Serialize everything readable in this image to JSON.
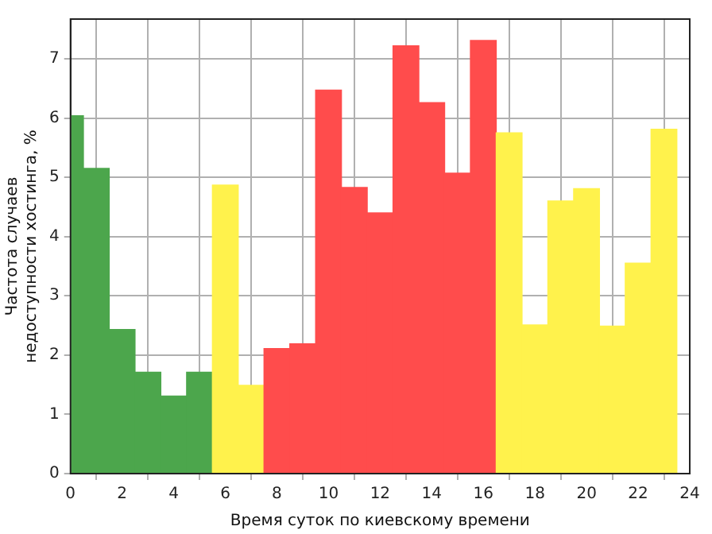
{
  "chart_data": {
    "type": "histogram",
    "xlabel": "Время суток по киевскому времени",
    "ylabel": "Частота случаев\nнедоступности хостинга, %",
    "bins": [
      -0.5,
      0.5,
      1.5,
      2.5,
      3.5,
      4.5,
      5.5,
      6.5,
      7.5,
      8.5,
      9.5,
      10.5,
      11.5,
      12.5,
      13.5,
      14.5,
      15.5,
      16.5,
      17.5,
      18.5,
      19.5,
      20.5,
      21.5,
      22.5,
      23.5
    ],
    "values": [
      6.04,
      5.15,
      2.43,
      1.71,
      1.31,
      1.71,
      4.87,
      1.49,
      2.11,
      2.19,
      6.47,
      4.83,
      4.4,
      7.22,
      6.26,
      5.07,
      7.31,
      5.75,
      2.51,
      4.6,
      4.81,
      2.49,
      3.55,
      5.81
    ],
    "colors": [
      "#4ca64c",
      "#4ca64c",
      "#4ca64c",
      "#4ca64c",
      "#4ca64c",
      "#4ca64c",
      "#fff24c",
      "#fff24c",
      "#ff4c4c",
      "#ff4c4c",
      "#ff4c4c",
      "#ff4c4c",
      "#ff4c4c",
      "#ff4c4c",
      "#ff4c4c",
      "#ff4c4c",
      "#ff4c4c",
      "#fff24c",
      "#fff24c",
      "#fff24c",
      "#fff24c",
      "#fff24c",
      "#fff24c",
      "#fff24c"
    ],
    "xlim": [
      0,
      24
    ],
    "xticks": [
      0,
      2,
      4,
      6,
      8,
      10,
      12,
      14,
      16,
      18,
      20,
      22,
      24
    ],
    "ylim": [
      0,
      7.67
    ],
    "yticks": [
      0,
      1,
      2,
      3,
      4,
      5,
      6,
      7
    ],
    "grid": true
  }
}
